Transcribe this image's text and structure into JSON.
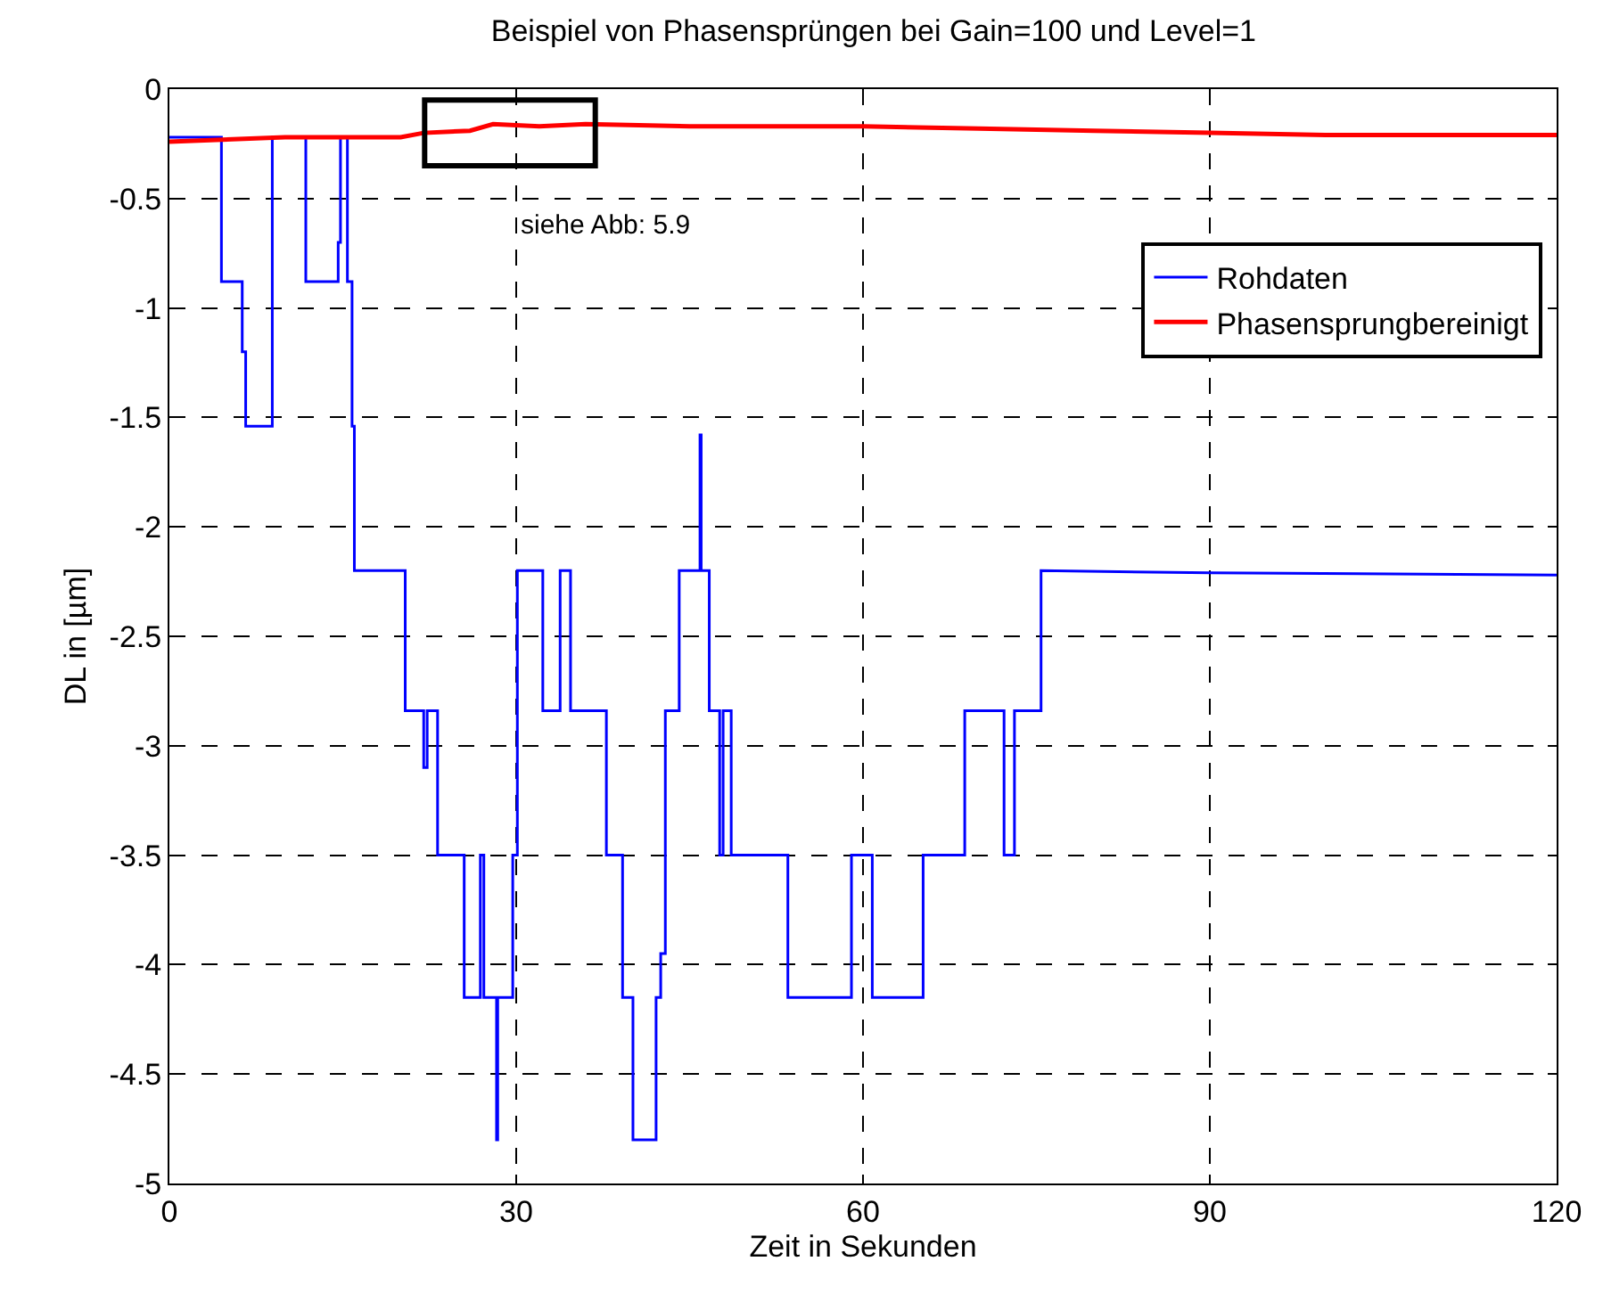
{
  "chart_data": {
    "type": "line",
    "title": "Beispiel von Phasensprüngen bei Gain=100 und Level=1",
    "xlabel": "Zeit in Sekunden",
    "ylabel": "DL in [µm]",
    "series": [
      {
        "name": "Rohdaten",
        "color": "#0000ff",
        "x": [
          0,
          4.5,
          4.5,
          6.3,
          6.3,
          6.6,
          6.6,
          8.9,
          8.9,
          11.8,
          11.8,
          14.6,
          14.6,
          14.8,
          14.8,
          15.4,
          15.4,
          15.8,
          15.8,
          16.0,
          16.0,
          20.4,
          20.4,
          22.0,
          22.0,
          22.3,
          22.3,
          23.2,
          23.2,
          25.5,
          25.5,
          26.9,
          26.9,
          27.2,
          27.2,
          28.3,
          28.3,
          28.4,
          28.4,
          29.7,
          29.7,
          30.1,
          30.1,
          32.3,
          32.3,
          33.8,
          33.8,
          34.7,
          34.7,
          37.8,
          37.8,
          39.2,
          39.2,
          40.1,
          40.1,
          42.1,
          42.1,
          42.5,
          42.5,
          42.9,
          42.9,
          44.1,
          44.1,
          45.9,
          45.9,
          46.0,
          46.0,
          46.7,
          46.7,
          47.6,
          47.6,
          47.9,
          47.9,
          48.6,
          48.6,
          53.5,
          53.5,
          59.0,
          59.0,
          60.8,
          60.8,
          65.2,
          65.2,
          68.8,
          68.8,
          72.2,
          72.2,
          73.1,
          73.1,
          75.4,
          75.4,
          90,
          120
        ],
        "values": [
          -0.22,
          -0.22,
          -0.88,
          -0.88,
          -1.2,
          -1.2,
          -1.54,
          -1.54,
          -0.22,
          -0.22,
          -0.88,
          -0.88,
          -0.7,
          -0.7,
          -0.22,
          -0.22,
          -0.88,
          -0.88,
          -1.54,
          -1.54,
          -2.2,
          -2.2,
          -2.84,
          -2.84,
          -3.1,
          -3.1,
          -2.84,
          -2.84,
          -3.5,
          -3.5,
          -4.15,
          -4.15,
          -3.5,
          -3.5,
          -4.15,
          -4.15,
          -4.8,
          -4.8,
          -4.15,
          -4.15,
          -3.5,
          -3.5,
          -2.2,
          -2.2,
          -2.84,
          -2.84,
          -2.2,
          -2.2,
          -2.84,
          -2.84,
          -3.5,
          -3.5,
          -4.15,
          -4.15,
          -4.8,
          -4.8,
          -4.15,
          -4.15,
          -3.95,
          -3.95,
          -2.84,
          -2.84,
          -2.2,
          -2.2,
          -1.58,
          -1.58,
          -2.2,
          -2.2,
          -2.84,
          -2.84,
          -3.5,
          -3.5,
          -2.84,
          -2.84,
          -3.5,
          -3.5,
          -4.15,
          -4.15,
          -3.5,
          -3.5,
          -4.15,
          -4.15,
          -3.5,
          -3.5,
          -2.84,
          -2.84,
          -3.5,
          -3.5,
          -2.84,
          -2.84,
          -2.2,
          -2.21,
          -2.22
        ]
      },
      {
        "name": "Phasensprungbereinigt",
        "color": "#ff0000",
        "x": [
          0,
          10,
          20,
          22,
          26,
          28,
          32,
          36,
          45,
          60,
          70,
          80,
          90,
          100,
          120
        ],
        "values": [
          -0.24,
          -0.22,
          -0.22,
          -0.2,
          -0.19,
          -0.16,
          -0.17,
          -0.16,
          -0.17,
          -0.17,
          -0.18,
          -0.19,
          -0.2,
          -0.21,
          -0.21
        ]
      }
    ],
    "annotations": [
      "siehe Abb: 5.9"
    ],
    "xlim": [
      0,
      120
    ],
    "xticks": [
      0,
      30,
      60,
      90,
      120
    ],
    "ylim": [
      -5,
      0
    ],
    "yticks": [
      -5,
      -4.5,
      -4,
      -3.5,
      -3,
      -2.5,
      -2,
      -1.5,
      -1,
      -0.5,
      0
    ],
    "grid": true,
    "legend": "top right",
    "line_style": "solid",
    "marker": "none"
  }
}
